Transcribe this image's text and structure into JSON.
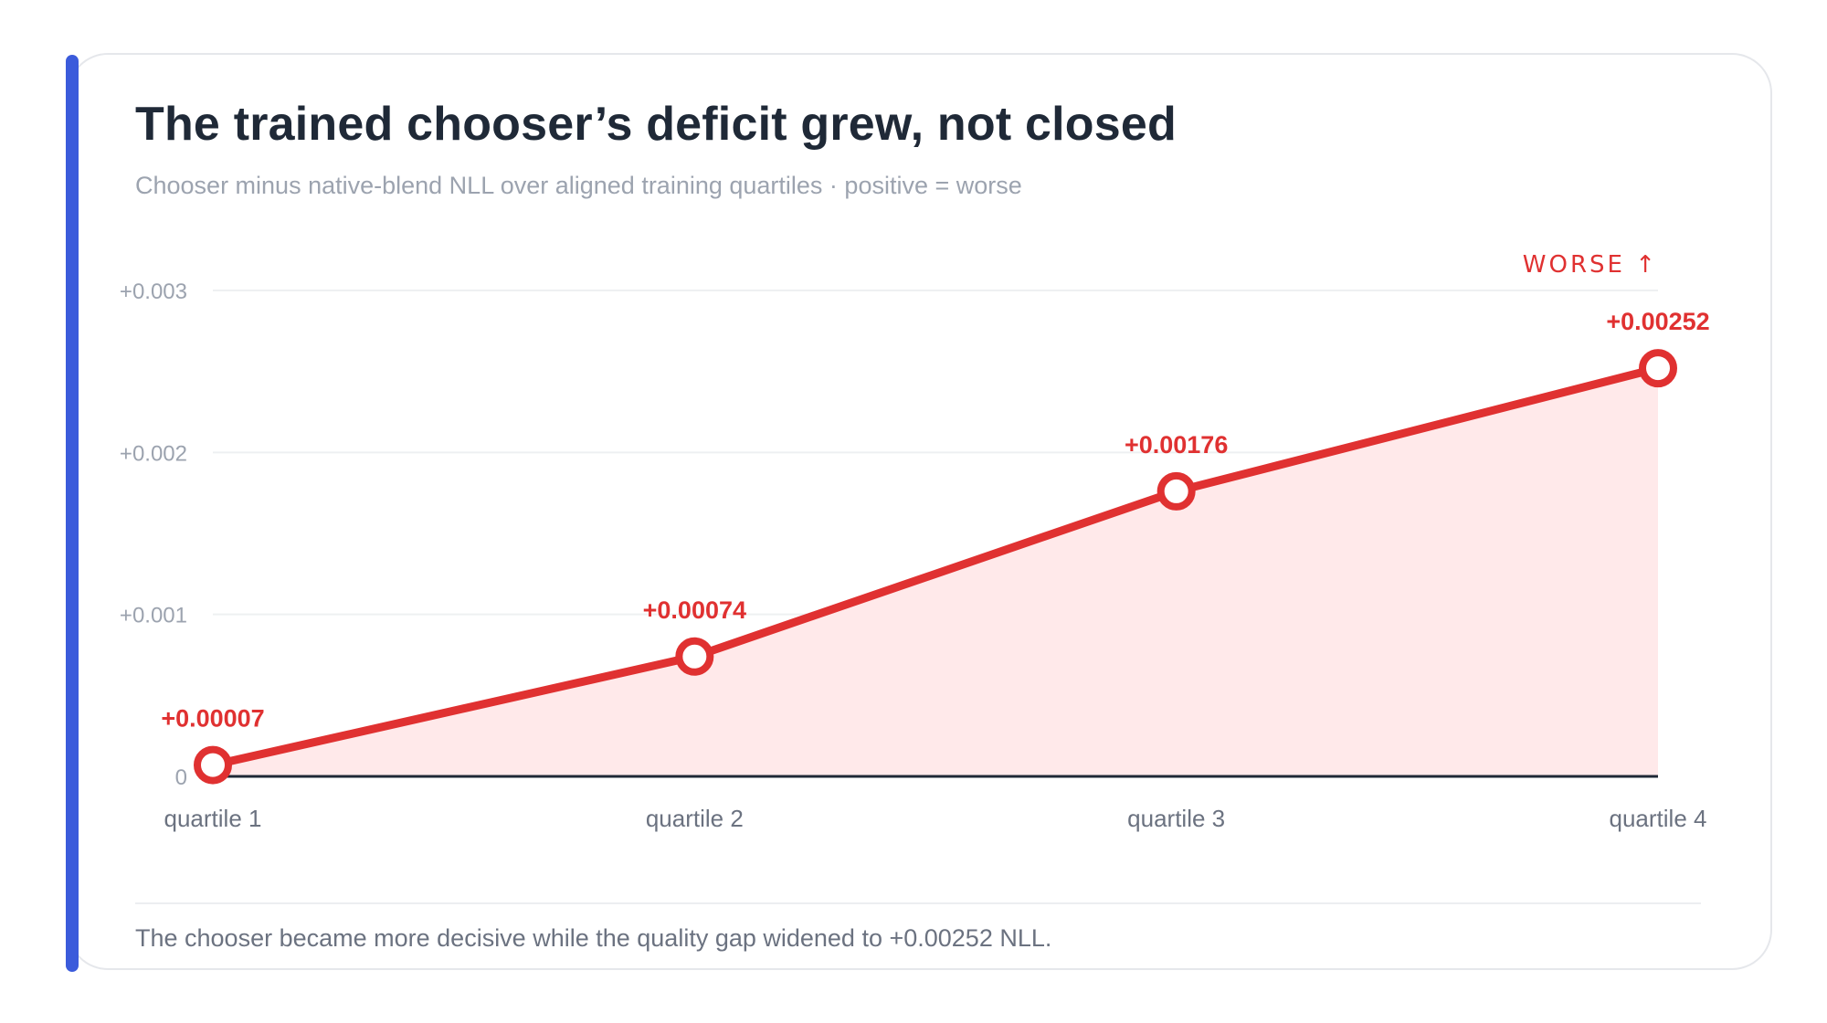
{
  "colors": {
    "accent": "#3b5bdb",
    "line": "#e03131",
    "fill": "#ffe9ea",
    "label": "#e03131",
    "grid": "#eef0f2",
    "baseline": "#1f2937",
    "tick": "#9ca3af",
    "category": "#6b7280"
  },
  "header": {
    "title": "The trained chooser’s deficit grew, not closed",
    "subtitle": "Chooser minus native-blend NLL over aligned training quartiles · positive = worse"
  },
  "chart_data": {
    "type": "line",
    "categories": [
      "quartile 1",
      "quartile 2",
      "quartile 3",
      "quartile 4"
    ],
    "series": [
      {
        "values": [
          7e-05,
          0.00074,
          0.00176,
          0.00252
        ],
        "labels": [
          "+0.00007",
          "+0.00074",
          "+0.00176",
          "+0.00252"
        ]
      }
    ],
    "yticks": [
      {
        "value": 0,
        "label": "0"
      },
      {
        "value": 0.001,
        "label": "+0.001"
      },
      {
        "value": 0.002,
        "label": "+0.002"
      },
      {
        "value": 0.003,
        "label": "+0.003"
      }
    ],
    "ylim": [
      0,
      0.003
    ],
    "direction_label": "WORSE ↑",
    "grid": true,
    "area_fill": true
  },
  "footer": {
    "note": "The chooser became more decisive while the quality gap widened to +0.00252 NLL."
  }
}
